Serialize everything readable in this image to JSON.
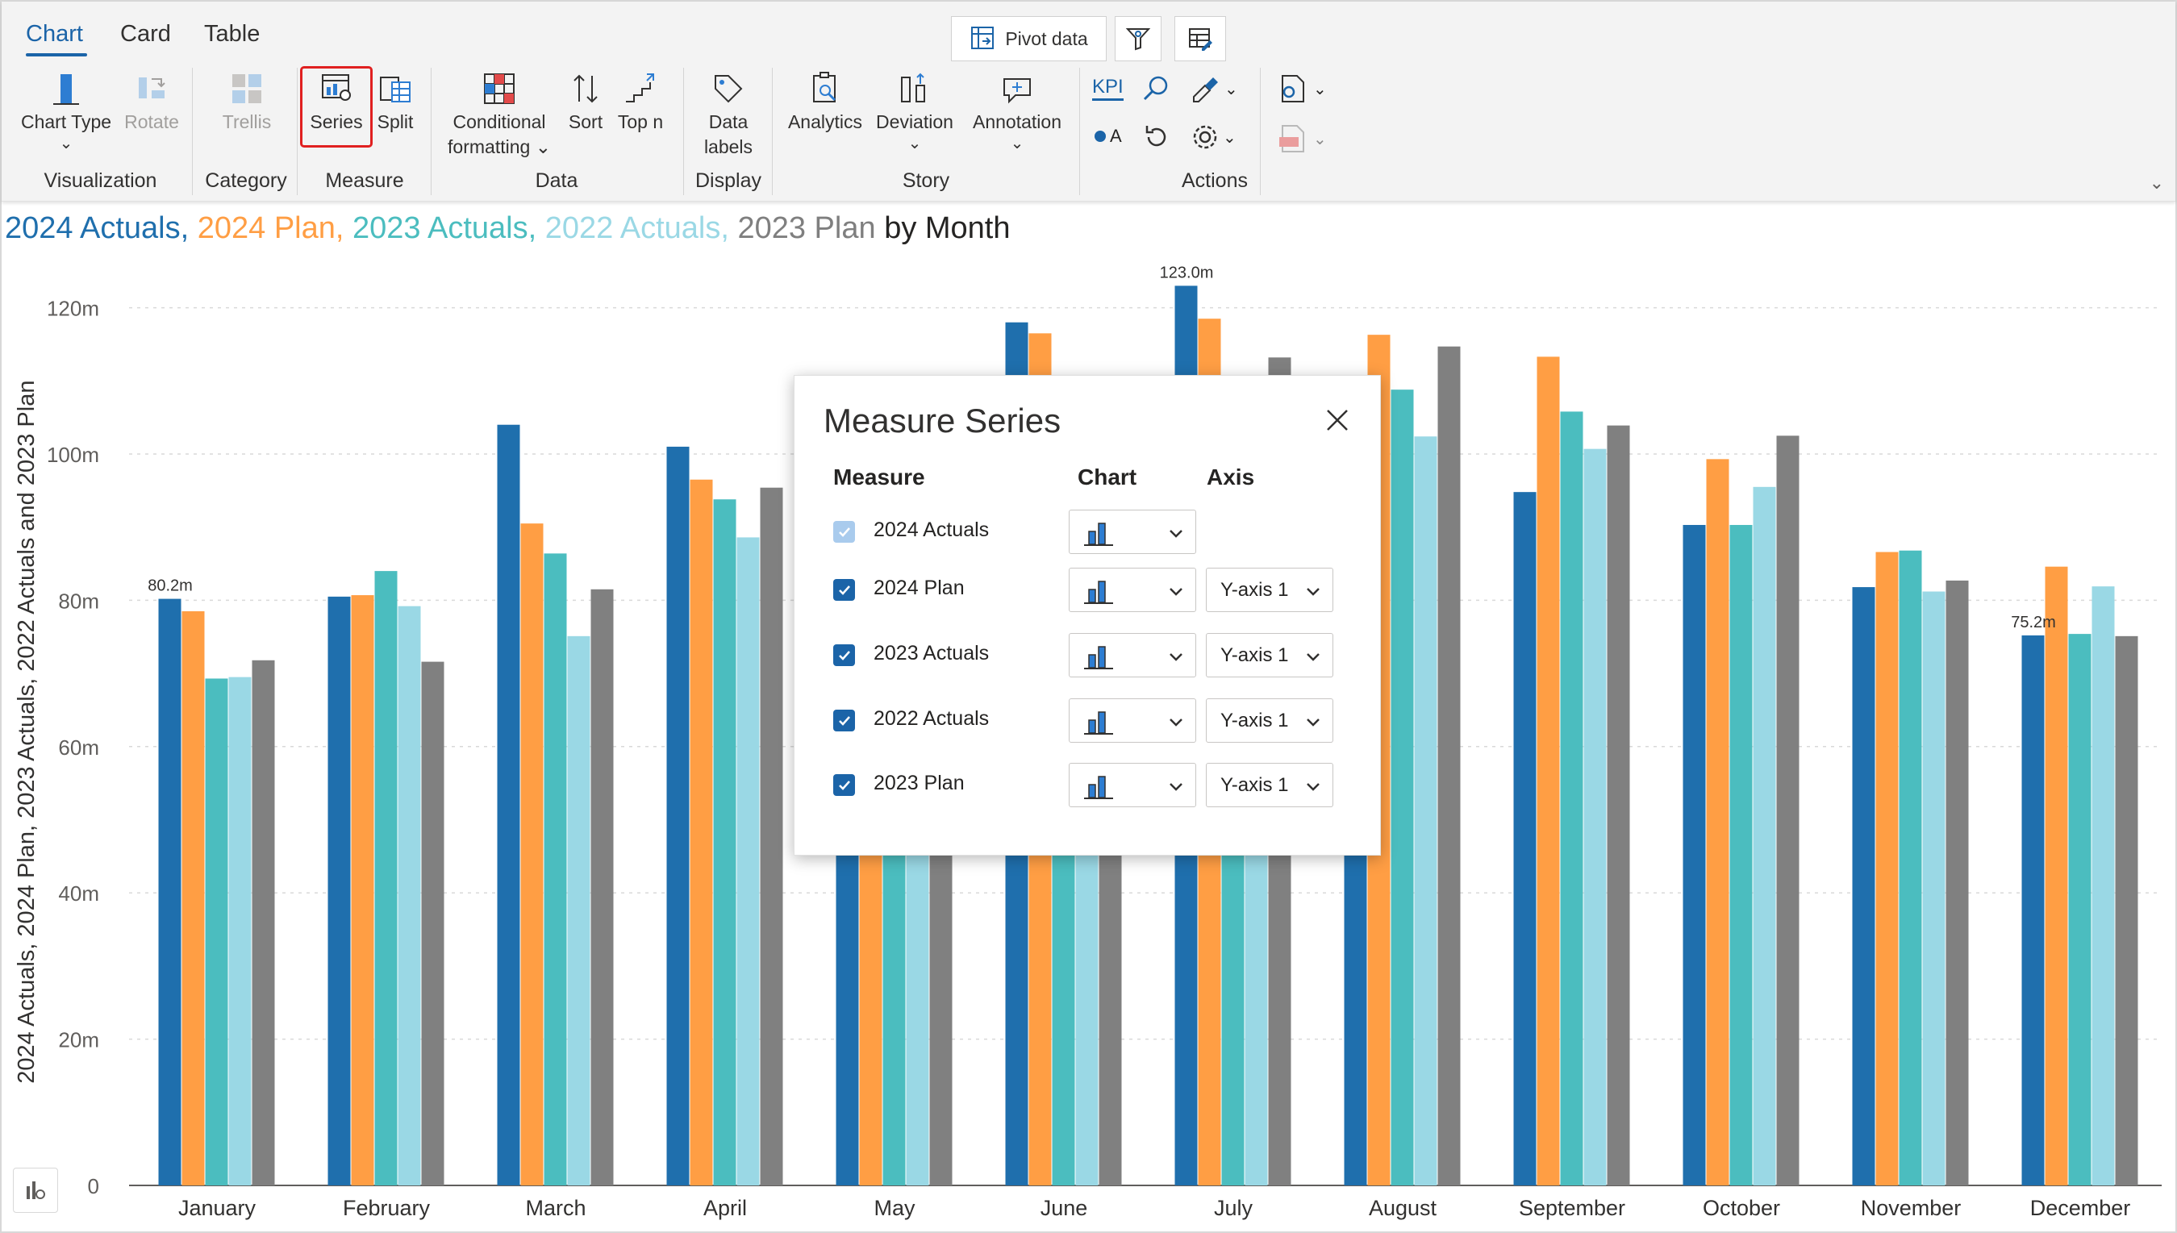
{
  "ribbon": {
    "tabs": [
      "Chart",
      "Card",
      "Table"
    ],
    "active_tab": "Chart",
    "top_buttons": {
      "pivot_label": "Pivot data"
    },
    "buttons": {
      "chart_type": "Chart Type",
      "rotate": "Rotate",
      "trellis": "Trellis",
      "series": "Series",
      "split": "Split",
      "conditional_1": "Conditional",
      "conditional_2": "formatting",
      "sort": "Sort",
      "top_n": "Top n",
      "data_labels_1": "Data",
      "data_labels_2": "labels",
      "analytics": "Analytics",
      "deviation": "Deviation",
      "annotation": "Annotation",
      "kpi": "KPI",
      "oa": "A"
    },
    "groups": {
      "visualization": "Visualization",
      "category": "Category",
      "measure": "Measure",
      "data": "Data",
      "display": "Display",
      "story": "Story",
      "actions": "Actions"
    }
  },
  "title": {
    "parts": [
      {
        "text": "2024 Actuals, ",
        "color": "#1f6fad"
      },
      {
        "text": "2024 Plan, ",
        "color": "#ff9e44"
      },
      {
        "text": "2023 Actuals, ",
        "color": "#4bbdbf"
      },
      {
        "text": "2022 Actuals, ",
        "color": "#9ad8e5"
      },
      {
        "text": "2023 Plan ",
        "color": "#7f7f7f"
      },
      {
        "text": "by Month",
        "color": "#252423"
      }
    ]
  },
  "chart_data": {
    "type": "bar",
    "ylabel": "2024 Actuals, 2024 Plan, 2023 Actuals, 2022 Actuals and 2023 Plan",
    "ylim": [
      0,
      125
    ],
    "yticks": [
      0,
      20,
      40,
      60,
      80,
      100,
      120
    ],
    "ytick_labels": [
      "0",
      "20m",
      "40m",
      "60m",
      "80m",
      "100m",
      "120m"
    ],
    "grid": true,
    "categories": [
      "January",
      "February",
      "March",
      "April",
      "May",
      "June",
      "July",
      "August",
      "September",
      "October",
      "November",
      "December"
    ],
    "series": [
      {
        "name": "2024 Actuals",
        "color": "#1f6fad",
        "values": [
          80.2,
          80.5,
          104,
          101,
          88,
          118,
          123.0,
          108,
          94.8,
          90.3,
          81.8,
          75.2
        ]
      },
      {
        "name": "2024 Plan",
        "color": "#ff9e44",
        "values": [
          78.5,
          80.7,
          90.5,
          96.5,
          90,
          116.5,
          118.5,
          116.3,
          113.3,
          99.3,
          86.6,
          84.6
        ]
      },
      {
        "name": "2023 Actuals",
        "color": "#4bbdbf",
        "values": [
          69.3,
          84,
          86.4,
          93.8,
          85,
          105,
          107,
          108.8,
          105.8,
          90.3,
          86.8,
          75.4
        ]
      },
      {
        "name": "2022 Actuals",
        "color": "#9ad8e5",
        "values": [
          69.5,
          79.2,
          75.1,
          88.6,
          84,
          100,
          103,
          102.4,
          100.7,
          95.5,
          81.2,
          81.9
        ]
      },
      {
        "name": "2023 Plan",
        "color": "#808080",
        "values": [
          71.8,
          71.6,
          81.5,
          95.4,
          92,
          110,
          113.2,
          114.7,
          103.9,
          102.5,
          82.7,
          75.1
        ]
      }
    ],
    "data_labels": [
      {
        "category": "January",
        "series": "2024 Actuals",
        "text": "80.2m"
      },
      {
        "category": "July",
        "series": "2024 Actuals",
        "text": "123.0m"
      },
      {
        "category": "December",
        "series": "2024 Actuals",
        "text": "75.2m"
      }
    ]
  },
  "dialog": {
    "title": "Measure Series",
    "headers": {
      "measure": "Measure",
      "chart": "Chart",
      "axis": "Axis"
    },
    "rows": [
      {
        "name": "2024 Actuals",
        "checked": true,
        "disabled": true,
        "axis": ""
      },
      {
        "name": "2024 Plan",
        "checked": true,
        "disabled": false,
        "axis": "Y-axis 1"
      },
      {
        "name": "2023 Actuals",
        "checked": true,
        "disabled": false,
        "axis": "Y-axis 1"
      },
      {
        "name": "2022 Actuals",
        "checked": true,
        "disabled": false,
        "axis": "Y-axis 1"
      },
      {
        "name": "2023 Plan",
        "checked": true,
        "disabled": false,
        "axis": "Y-axis 1"
      }
    ]
  }
}
